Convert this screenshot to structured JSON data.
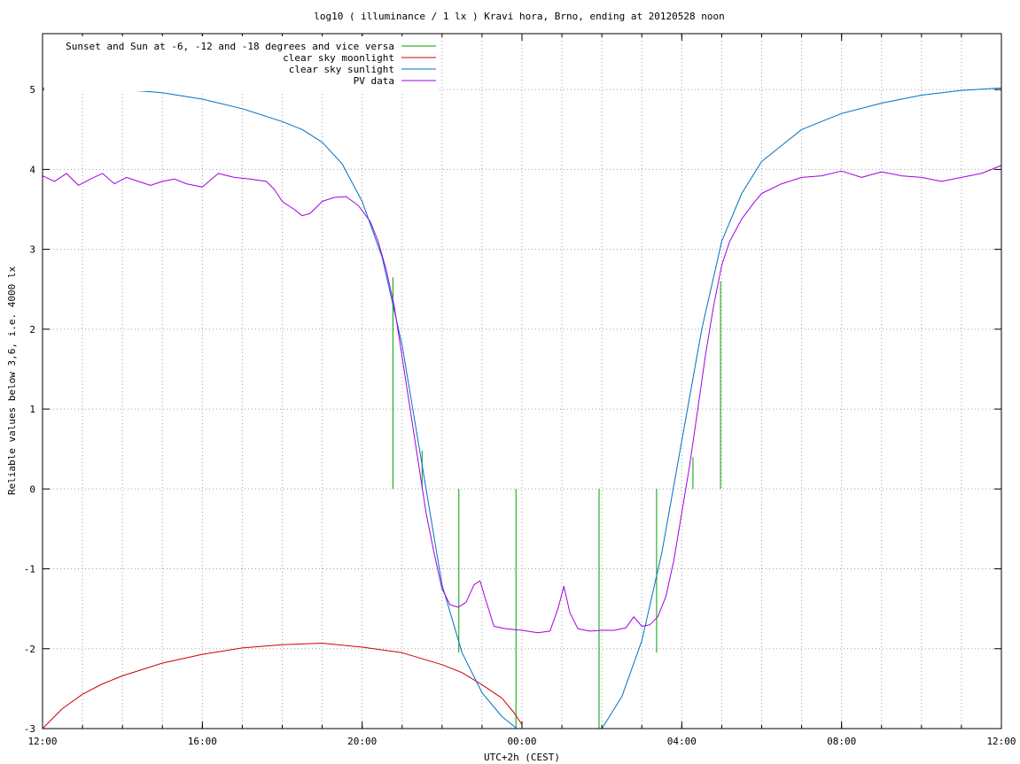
{
  "chart_data": {
    "type": "line",
    "title": "log10 ( illuminance / 1 lx ) Kravi hora, Brno, ending at 20120528 noon",
    "xlabel": "UTC+2h (CEST)",
    "ylabel": "Reliable values below 3,6, i.e. 4000 lx",
    "x_unit": "hours after 12:00 (local time)",
    "xlim": [
      0,
      24
    ],
    "ylim": [
      -3,
      5.7
    ],
    "grid": true,
    "legend_position": "top-left",
    "x_ticks": [
      {
        "value": 0,
        "label": "12:00"
      },
      {
        "value": 4,
        "label": "16:00"
      },
      {
        "value": 8,
        "label": "20:00"
      },
      {
        "value": 12,
        "label": "00:00"
      },
      {
        "value": 16,
        "label": "04:00"
      },
      {
        "value": 20,
        "label": "08:00"
      },
      {
        "value": 24,
        "label": "12:00"
      }
    ],
    "y_ticks": [
      {
        "value": -3,
        "label": "-3"
      },
      {
        "value": -2,
        "label": "-2"
      },
      {
        "value": -1,
        "label": "-1"
      },
      {
        "value": 0,
        "label": "0"
      },
      {
        "value": 1,
        "label": "1"
      },
      {
        "value": 2,
        "label": "2"
      },
      {
        "value": 3,
        "label": "3"
      },
      {
        "value": 4,
        "label": "4"
      },
      {
        "value": 5,
        "label": "5"
      }
    ],
    "series": [
      {
        "name": "Sunset and Sun at -6, -12 and -18 degrees and vice versa",
        "color": "#00a000",
        "kind": "vertical-markers",
        "markers": [
          {
            "x": 8.77,
            "y_top": 2.65,
            "y_bottom": 0
          },
          {
            "x": 9.5,
            "y_top": 0.48,
            "y_bottom": 0
          },
          {
            "x": 10.42,
            "y_top": -2.05,
            "y_bottom": 0
          },
          {
            "x": 11.85,
            "y_top": -3,
            "y_bottom": 0
          },
          {
            "x": 13.93,
            "y_top": -3,
            "y_bottom": 0
          },
          {
            "x": 15.37,
            "y_top": -2.05,
            "y_bottom": 0
          },
          {
            "x": 16.28,
            "y_top": 0.4,
            "y_bottom": 0
          },
          {
            "x": 16.97,
            "y_top": 2.6,
            "y_bottom": 0
          }
        ]
      },
      {
        "name": "clear sky moonlight",
        "color": "#cc0000",
        "x": [
          0,
          0.5,
          1,
          1.5,
          2,
          3,
          4,
          5,
          6,
          7,
          8,
          9,
          10,
          10.5,
          11,
          11.5,
          11.8,
          12.0
        ],
        "y": [
          -3.0,
          -2.75,
          -2.57,
          -2.44,
          -2.34,
          -2.18,
          -2.07,
          -1.99,
          -1.95,
          -1.93,
          -1.98,
          -2.05,
          -2.2,
          -2.3,
          -2.45,
          -2.62,
          -2.8,
          -2.95
        ]
      },
      {
        "name": "clear sky sunlight",
        "color": "#0070c0",
        "x": [
          0,
          0.5,
          1,
          1.5,
          2,
          3,
          4,
          5,
          6,
          6.5,
          7,
          7.5,
          8,
          8.5,
          9,
          9.5,
          10,
          10.5,
          11,
          11.5,
          12,
          12.5,
          13,
          13.5,
          14,
          14.5,
          15,
          15.5,
          16,
          16.5,
          17,
          17.5,
          18,
          19,
          20,
          21,
          22,
          23,
          24
        ],
        "y": [
          5.02,
          5.02,
          5.02,
          5.01,
          5.0,
          4.96,
          4.88,
          4.76,
          4.6,
          4.5,
          4.34,
          4.07,
          3.6,
          2.9,
          1.8,
          0.3,
          -1.2,
          -2.05,
          -2.55,
          -2.85,
          -3.05,
          -3.2,
          -3.25,
          -3.2,
          -3.0,
          -2.6,
          -1.9,
          -0.8,
          0.6,
          2.0,
          3.1,
          3.7,
          4.1,
          4.5,
          4.7,
          4.83,
          4.93,
          4.99,
          5.02
        ]
      },
      {
        "name": "PV data",
        "color": "#a000e0",
        "x": [
          0,
          0.3,
          0.6,
          0.9,
          1.2,
          1.5,
          1.8,
          2.1,
          2.4,
          2.7,
          3.0,
          3.3,
          3.6,
          4.0,
          4.4,
          4.8,
          5.2,
          5.6,
          5.8,
          6.0,
          6.3,
          6.5,
          6.7,
          7.0,
          7.3,
          7.6,
          7.9,
          8.2,
          8.4,
          8.6,
          8.8,
          9.0,
          9.2,
          9.4,
          9.6,
          9.8,
          10.0,
          10.2,
          10.4,
          10.6,
          10.8,
          10.95,
          11.1,
          11.3,
          11.6,
          12.0,
          12.4,
          12.7,
          12.9,
          13.05,
          13.2,
          13.4,
          13.7,
          14.0,
          14.3,
          14.6,
          14.8,
          15.0,
          15.2,
          15.4,
          15.6,
          15.8,
          16.0,
          16.2,
          16.4,
          16.6,
          16.8,
          17.0,
          17.2,
          17.5,
          17.8,
          18.0,
          18.5,
          19.0,
          19.5,
          20.0,
          20.5,
          21.0,
          21.5,
          22.0,
          22.5,
          23.0,
          23.5,
          24.0
        ],
        "y": [
          3.92,
          3.85,
          3.95,
          3.8,
          3.88,
          3.95,
          3.82,
          3.9,
          3.85,
          3.8,
          3.85,
          3.88,
          3.82,
          3.78,
          3.95,
          3.9,
          3.88,
          3.85,
          3.75,
          3.6,
          3.5,
          3.42,
          3.45,
          3.6,
          3.65,
          3.66,
          3.55,
          3.35,
          3.1,
          2.75,
          2.3,
          1.65,
          1.0,
          0.35,
          -0.3,
          -0.8,
          -1.25,
          -1.45,
          -1.48,
          -1.42,
          -1.2,
          -1.15,
          -1.4,
          -1.72,
          -1.75,
          -1.77,
          -1.8,
          -1.78,
          -1.5,
          -1.22,
          -1.55,
          -1.75,
          -1.78,
          -1.77,
          -1.77,
          -1.74,
          -1.6,
          -1.72,
          -1.7,
          -1.6,
          -1.35,
          -0.9,
          -0.3,
          0.3,
          1.0,
          1.7,
          2.3,
          2.8,
          3.1,
          3.38,
          3.58,
          3.7,
          3.82,
          3.9,
          3.92,
          3.98,
          3.9,
          3.97,
          3.92,
          3.9,
          3.85,
          3.9,
          3.95,
          4.05
        ]
      }
    ]
  }
}
